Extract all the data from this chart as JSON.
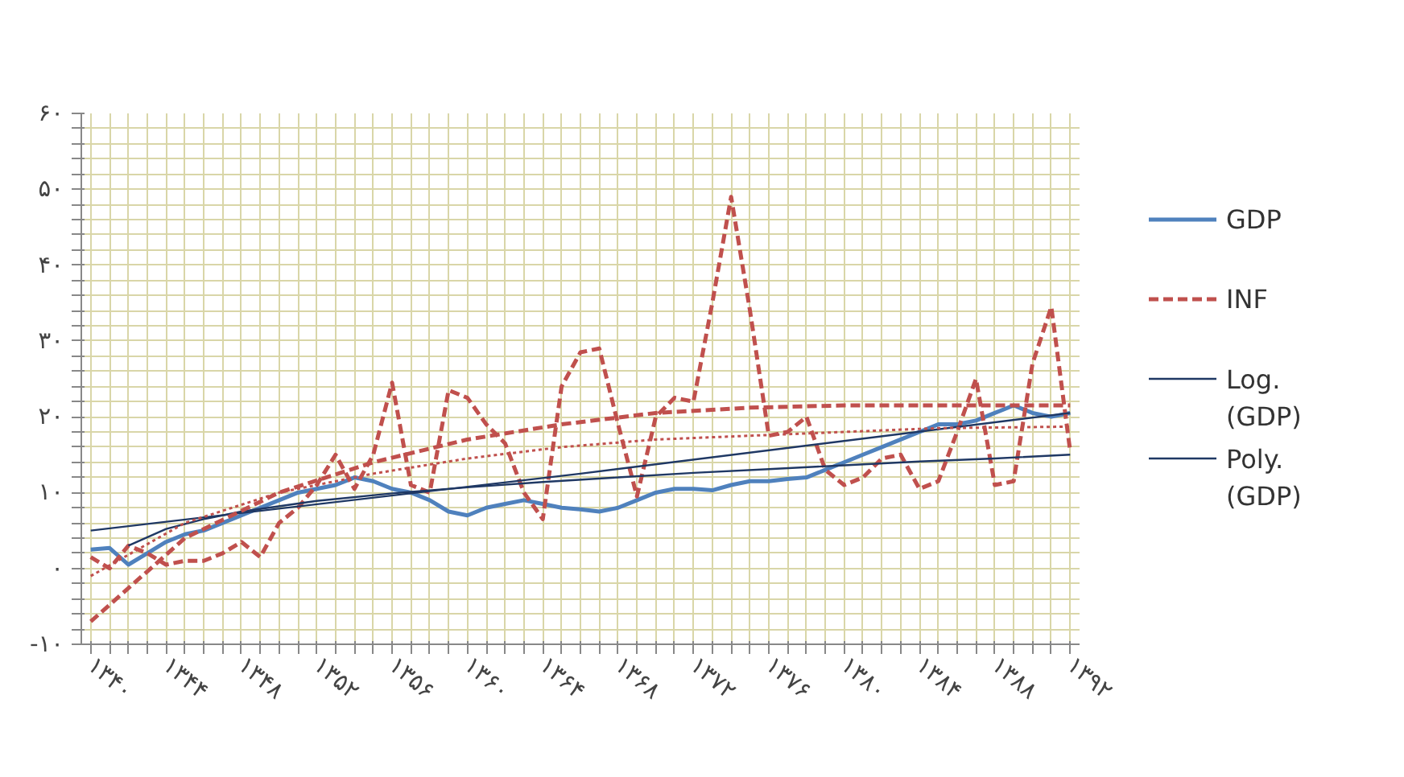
{
  "chart_data": {
    "type": "line",
    "x": [
      1340,
      1341,
      1342,
      1343,
      1344,
      1345,
      1346,
      1347,
      1348,
      1349,
      1350,
      1351,
      1352,
      1353,
      1354,
      1355,
      1356,
      1357,
      1358,
      1359,
      1360,
      1361,
      1362,
      1363,
      1364,
      1365,
      1366,
      1367,
      1368,
      1369,
      1370,
      1371,
      1372,
      1373,
      1374,
      1375,
      1376,
      1377,
      1378,
      1379,
      1380,
      1381,
      1382,
      1383,
      1384,
      1385,
      1386,
      1387,
      1388,
      1389,
      1390,
      1391,
      1392
    ],
    "xlim": [
      1339.5,
      1392.5
    ],
    "ylim": [
      -10,
      60
    ],
    "xticks": [
      {
        "value": 1340,
        "label": "۱۳۴۰"
      },
      {
        "value": 1341,
        "label": null
      },
      {
        "value": 1342,
        "label": null
      },
      {
        "value": 1343,
        "label": null
      },
      {
        "value": 1344,
        "label": "۱۳۴۴"
      },
      {
        "value": 1345,
        "label": null
      },
      {
        "value": 1346,
        "label": null
      },
      {
        "value": 1347,
        "label": null
      },
      {
        "value": 1348,
        "label": "۱۳۴۸"
      },
      {
        "value": 1349,
        "label": null
      },
      {
        "value": 1350,
        "label": null
      },
      {
        "value": 1351,
        "label": null
      },
      {
        "value": 1352,
        "label": "۱۳۵۲"
      },
      {
        "value": 1353,
        "label": null
      },
      {
        "value": 1354,
        "label": null
      },
      {
        "value": 1355,
        "label": null
      },
      {
        "value": 1356,
        "label": "۱۳۵۶"
      },
      {
        "value": 1357,
        "label": null
      },
      {
        "value": 1358,
        "label": null
      },
      {
        "value": 1359,
        "label": null
      },
      {
        "value": 1360,
        "label": "۱۳۶۰"
      },
      {
        "value": 1361,
        "label": null
      },
      {
        "value": 1362,
        "label": null
      },
      {
        "value": 1363,
        "label": null
      },
      {
        "value": 1364,
        "label": "۱۳۶۴"
      },
      {
        "value": 1365,
        "label": null
      },
      {
        "value": 1366,
        "label": null
      },
      {
        "value": 1367,
        "label": null
      },
      {
        "value": 1368,
        "label": "۱۳۶۸"
      },
      {
        "value": 1369,
        "label": null
      },
      {
        "value": 1370,
        "label": null
      },
      {
        "value": 1371,
        "label": null
      },
      {
        "value": 1372,
        "label": "۱۳۷۲"
      },
      {
        "value": 1373,
        "label": null
      },
      {
        "value": 1374,
        "label": null
      },
      {
        "value": 1375,
        "label": null
      },
      {
        "value": 1376,
        "label": "۱۳۷۶"
      },
      {
        "value": 1377,
        "label": null
      },
      {
        "value": 1378,
        "label": null
      },
      {
        "value": 1379,
        "label": null
      },
      {
        "value": 1380,
        "label": "۱۳۸۰"
      },
      {
        "value": 1381,
        "label": null
      },
      {
        "value": 1382,
        "label": null
      },
      {
        "value": 1383,
        "label": null
      },
      {
        "value": 1384,
        "label": "۱۳۸۴"
      },
      {
        "value": 1385,
        "label": null
      },
      {
        "value": 1386,
        "label": null
      },
      {
        "value": 1387,
        "label": null
      },
      {
        "value": 1388,
        "label": "۱۳۸۸"
      },
      {
        "value": 1389,
        "label": null
      },
      {
        "value": 1390,
        "label": null
      },
      {
        "value": 1391,
        "label": null
      },
      {
        "value": 1392,
        "label": "۱۳۹۲"
      }
    ],
    "yticks": [
      {
        "value": -10,
        "label": "-۱۰"
      },
      {
        "value": -8,
        "label": null
      },
      {
        "value": -6,
        "label": null
      },
      {
        "value": -4,
        "label": null
      },
      {
        "value": -2,
        "label": null
      },
      {
        "value": 0,
        "label": "۰"
      },
      {
        "value": 2,
        "label": null
      },
      {
        "value": 4,
        "label": null
      },
      {
        "value": 6,
        "label": null
      },
      {
        "value": 8,
        "label": null
      },
      {
        "value": 10,
        "label": "۱۰"
      },
      {
        "value": 12,
        "label": null
      },
      {
        "value": 14,
        "label": null
      },
      {
        "value": 16,
        "label": null
      },
      {
        "value": 18,
        "label": null
      },
      {
        "value": 20,
        "label": "۲۰"
      },
      {
        "value": 22,
        "label": null
      },
      {
        "value": 24,
        "label": null
      },
      {
        "value": 26,
        "label": null
      },
      {
        "value": 28,
        "label": null
      },
      {
        "value": 30,
        "label": "۳۰"
      },
      {
        "value": 32,
        "label": null
      },
      {
        "value": 34,
        "label": null
      },
      {
        "value": 36,
        "label": null
      },
      {
        "value": 38,
        "label": null
      },
      {
        "value": 40,
        "label": "۴۰"
      },
      {
        "value": 42,
        "label": null
      },
      {
        "value": 44,
        "label": null
      },
      {
        "value": 46,
        "label": null
      },
      {
        "value": 48,
        "label": null
      },
      {
        "value": 50,
        "label": "۵۰"
      },
      {
        "value": 52,
        "label": null
      },
      {
        "value": 54,
        "label": null
      },
      {
        "value": 56,
        "label": null
      },
      {
        "value": 58,
        "label": null
      },
      {
        "value": 60,
        "label": "۶۰"
      }
    ],
    "grid": true,
    "legend": "right",
    "marker": "none",
    "series": [
      {
        "name": "GDP",
        "color": "#4f81bd",
        "line_style": "solid",
        "values": [
          2.5,
          2.7,
          0.5,
          2,
          3.5,
          4.5,
          5,
          6,
          7,
          8,
          9,
          10,
          10.5,
          11,
          12,
          11.5,
          10.5,
          10,
          9,
          7.5,
          7,
          8,
          8.5,
          9,
          8.5,
          8,
          7.8,
          7.5,
          8,
          9,
          10,
          10.5,
          10.5,
          10.3,
          11,
          11.5,
          11.5,
          11.8,
          12,
          13,
          14,
          15,
          16,
          17,
          18,
          19,
          19,
          19.5,
          20.5,
          21.5,
          20.5,
          20,
          20.5
        ]
      },
      {
        "name": "INF",
        "color": "#c0504d",
        "line_style": "dashed",
        "values": [
          1.5,
          0,
          3,
          2,
          0.5,
          1,
          1,
          2,
          3.5,
          1.5,
          6,
          8,
          11,
          15,
          10.5,
          15,
          24.5,
          11,
          10,
          23.5,
          22.5,
          19,
          16.5,
          10,
          6.5,
          24,
          28.5,
          29,
          19,
          9.5,
          20,
          22.5,
          22,
          35,
          49,
          34,
          17.5,
          18,
          20,
          13,
          11,
          12,
          14.5,
          15,
          10.5,
          11.5,
          18,
          25,
          11,
          11.5,
          27,
          34.5,
          15.5
        ]
      },
      {
        "name": "Log.\n(GDP)",
        "color": "#1f3864",
        "line_style": "solid",
        "x": [
          1342,
          1344,
          1346,
          1348,
          1352,
          1356,
          1360,
          1364,
          1368,
          1372,
          1376,
          1380,
          1384,
          1388,
          1392
        ],
        "values": [
          3,
          5.2,
          6.5,
          7.5,
          8.9,
          9.9,
          10.7,
          11.4,
          12,
          12.6,
          13.1,
          13.6,
          14.1,
          14.5,
          15
        ]
      },
      {
        "name": "Poly.\n(GDP)",
        "color": "#1f3864",
        "line_style": "solid",
        "x": [
          1340,
          1366,
          1392
        ],
        "values": [
          5,
          12.5,
          20.5
        ]
      },
      {
        "color": "#c0504d",
        "line_style": "dashed",
        "x": [
          1340,
          1345,
          1350,
          1355,
          1360,
          1365,
          1370,
          1375,
          1380,
          1385,
          1390,
          1392
        ],
        "values": [
          -7,
          4,
          10,
          14,
          17,
          19,
          20.5,
          21.2,
          21.5,
          21.5,
          21.5,
          21.5
        ]
      },
      {
        "color": "#c0504d",
        "line_style": "dotted",
        "x": [
          1340,
          1345,
          1350,
          1355,
          1360,
          1365,
          1370,
          1375,
          1380,
          1385,
          1392
        ],
        "values": [
          -1,
          6,
          10,
          12.5,
          14.5,
          16,
          17,
          17.5,
          18,
          18.5,
          18.7
        ]
      }
    ]
  }
}
